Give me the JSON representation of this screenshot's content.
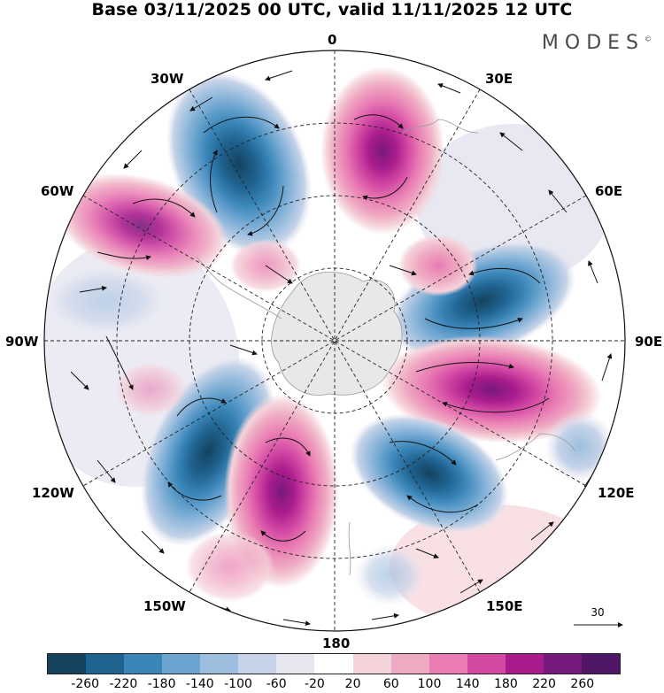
{
  "title": "Base 03/11/2025 00 UTC, valid 11/11/2025 12 UTC",
  "brand": "MODES",
  "brand_mark": "©",
  "map": {
    "projection": "south polar stereographic",
    "longitude_labels": {
      "top": "0",
      "top_left": "30W",
      "top_right": "30E",
      "upper_left": "60W",
      "upper_right": "60E",
      "left": "90W",
      "right": "90E",
      "lower_left": "120W",
      "lower_right": "120E",
      "bottom_left": "150W",
      "bottom_right": "150E",
      "bottom": "180"
    }
  },
  "reference_vector": {
    "value": "30"
  },
  "colorbar": {
    "colors": [
      "#14425f",
      "#1f6390",
      "#3a86b9",
      "#6ba4cf",
      "#9dbfdf",
      "#c6d3e8",
      "#e6e6f1",
      "#ffffff",
      "#f5d3da",
      "#efaac3",
      "#e97cb3",
      "#d34aa4",
      "#a91c8c",
      "#761a7d",
      "#4f1765"
    ],
    "tick_labels": [
      "-260",
      "-220",
      "-180",
      "-140",
      "-100",
      "-60",
      "-20",
      "20",
      "60",
      "100",
      "140",
      "180",
      "220",
      "260"
    ]
  },
  "anomaly_centers": [
    {
      "sign": "negative",
      "value": -260
    },
    {
      "sign": "positive",
      "value": 200
    },
    {
      "sign": "positive",
      "value": 180
    },
    {
      "sign": "negative",
      "value": -260
    },
    {
      "sign": "positive",
      "value": 260
    },
    {
      "sign": "negative",
      "value": -240
    },
    {
      "sign": "positive",
      "value": 240
    },
    {
      "sign": "negative",
      "value": -240
    },
    {
      "sign": "positive",
      "value": 140
    },
    {
      "sign": "negative",
      "value": -140
    }
  ]
}
